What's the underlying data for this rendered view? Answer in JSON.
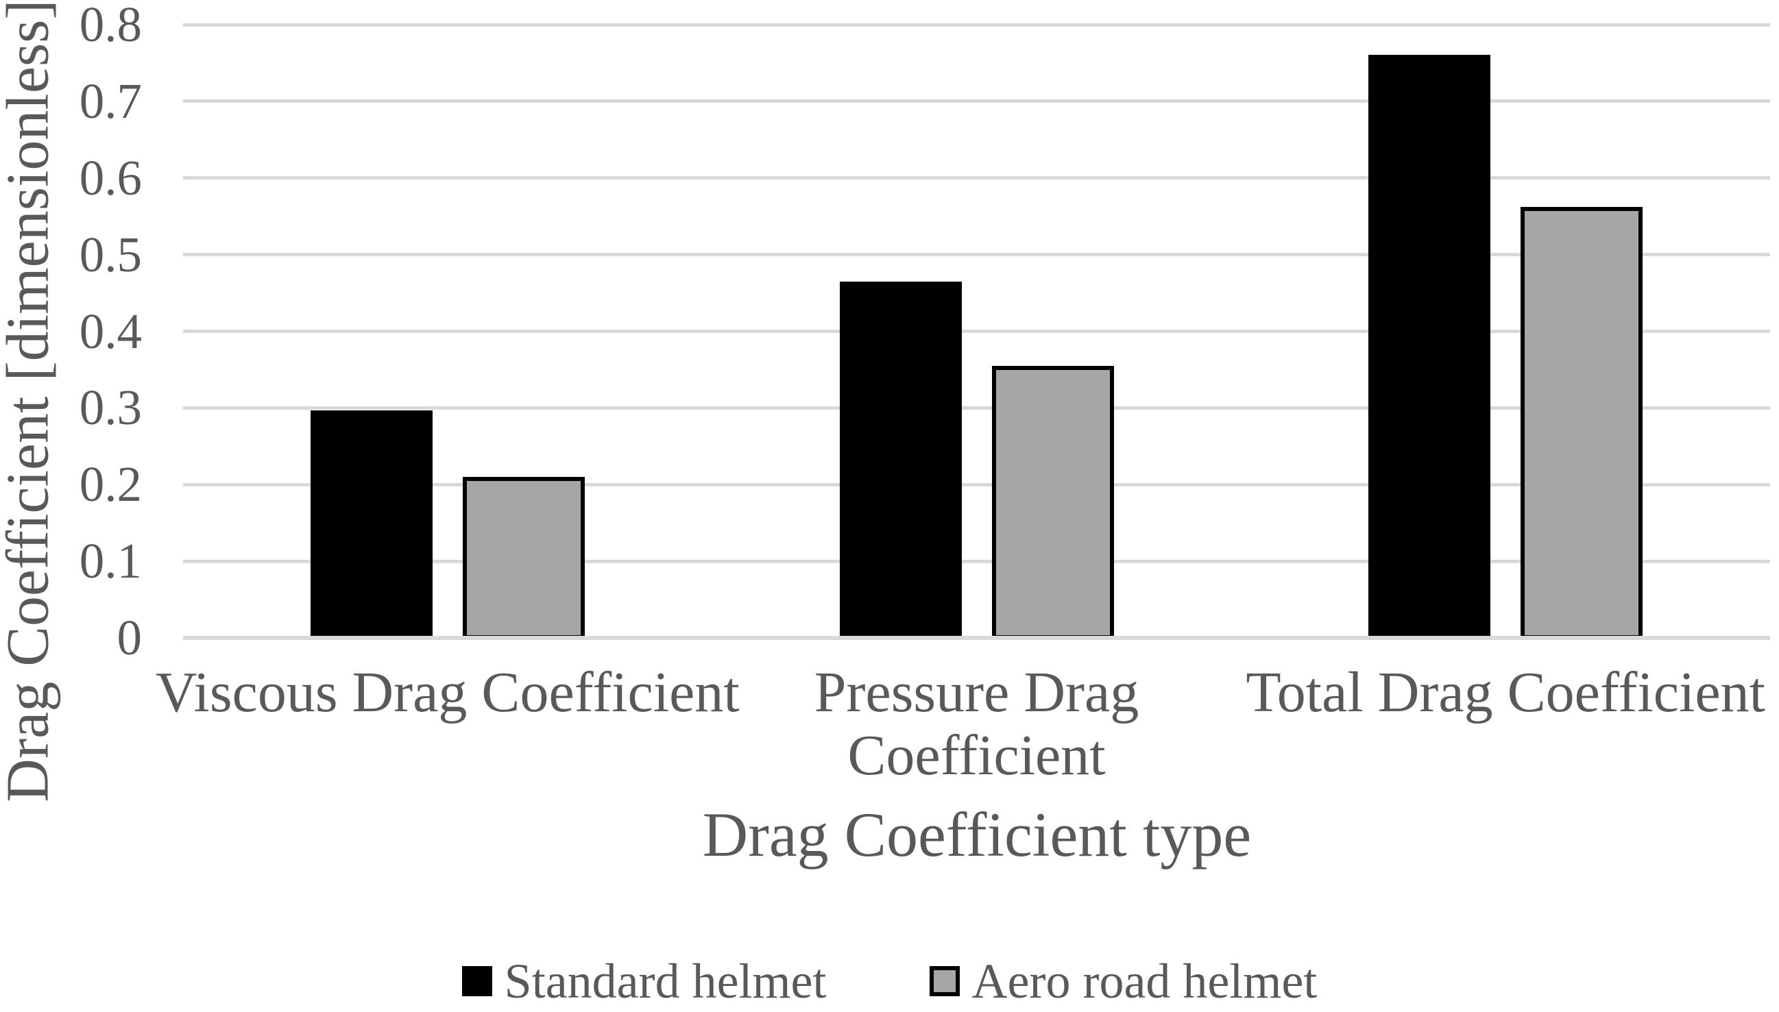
{
  "figure": {
    "background": "#ffffff",
    "text_color": "#595959",
    "grid_color": "#d9d9d9"
  },
  "chart_data": {
    "type": "bar",
    "title": "",
    "categories": [
      "Viscous Drag Coefficient",
      "Pressure Drag\nCoefficient",
      "Total Drag Coefficient"
    ],
    "series": [
      {
        "name": "Standard helmet",
        "color": "#000000",
        "border_color": "#000000",
        "values": [
          0.297,
          0.465,
          0.761
        ]
      },
      {
        "name": "Aero road helmet",
        "color": "#a6a6a6",
        "border_color": "#000000",
        "values": [
          0.21,
          0.355,
          0.562
        ]
      }
    ],
    "xlabel": "Drag Coefficient type",
    "ylabel": "Drag Coefficient [dimensionless]",
    "ylim": [
      0,
      0.8
    ],
    "ytick_labels": [
      "0",
      "0.1",
      "0.2",
      "0.3",
      "0.4",
      "0.5",
      "0.6",
      "0.7",
      "0.8"
    ],
    "grid": true,
    "legend_position": "bottom"
  }
}
